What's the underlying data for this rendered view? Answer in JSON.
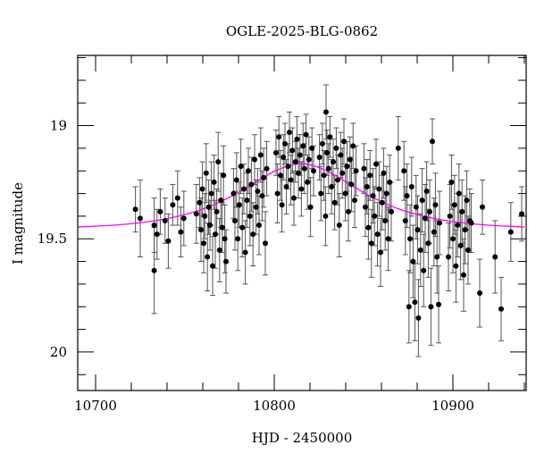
{
  "chart_data": {
    "type": "scatter",
    "title": "OGLE-2025-BLG-0862",
    "xlabel": "HJD - 2450000",
    "ylabel": "I magnitude",
    "xlim": [
      10690,
      10941
    ],
    "ylim": [
      20.17,
      18.69
    ],
    "y_inverted": true,
    "grid": false,
    "x_ticks": [
      10700,
      10800,
      10900
    ],
    "x_tick_labels": [
      "10700",
      "10800",
      "10900"
    ],
    "x_minor_step": 20,
    "y_ticks": [
      19,
      19.5,
      20
    ],
    "y_tick_labels": [
      "19",
      "19.5",
      "20"
    ],
    "y_minor_step": 0.1,
    "colors": {
      "points": "#000000",
      "errorbars": "#555555",
      "model": "#ff00ff"
    },
    "series": [
      {
        "type": "scatter-errorbar",
        "columns": [
          "hjd",
          "mag",
          "err"
        ],
        "points": [
          [
            10722.3,
            19.37,
            0.1
          ],
          [
            10725.0,
            19.41,
            0.17
          ],
          [
            10732.8,
            19.44,
            0.12
          ],
          [
            10732.8,
            19.64,
            0.19
          ],
          [
            10734.4,
            19.48,
            0.11
          ],
          [
            10736.2,
            19.38,
            0.1
          ],
          [
            10738.9,
            19.42,
            0.1
          ],
          [
            10740.7,
            19.51,
            0.12
          ],
          [
            10743.2,
            19.35,
            0.09
          ],
          [
            10745.9,
            19.32,
            0.12
          ],
          [
            10747.7,
            19.47,
            0.11
          ],
          [
            10749.4,
            19.41,
            0.12
          ],
          [
            10756.4,
            19.39,
            0.13
          ],
          [
            10758.2,
            19.34,
            0.11
          ],
          [
            10759.0,
            19.46,
            0.14
          ],
          [
            10759.8,
            19.28,
            0.12
          ],
          [
            10760.5,
            19.52,
            0.13
          ],
          [
            10761.1,
            19.4,
            0.1
          ],
          [
            10761.9,
            19.21,
            0.13
          ],
          [
            10762.6,
            19.58,
            0.15
          ],
          [
            10763.3,
            19.36,
            0.12
          ],
          [
            10764.0,
            19.44,
            0.11
          ],
          [
            10764.8,
            19.3,
            0.14
          ],
          [
            10765.5,
            19.62,
            0.13
          ],
          [
            10766.3,
            19.25,
            0.12
          ],
          [
            10767.0,
            19.48,
            0.15
          ],
          [
            10767.8,
            19.38,
            0.1
          ],
          [
            10768.6,
            19.16,
            0.13
          ],
          [
            10769.4,
            19.55,
            0.14
          ],
          [
            10770.1,
            19.33,
            0.12
          ],
          [
            10770.9,
            19.45,
            0.11
          ],
          [
            10771.6,
            19.22,
            0.13
          ],
          [
            10772.3,
            19.5,
            0.15
          ],
          [
            10773.0,
            19.6,
            0.14
          ],
          [
            10777.2,
            19.3,
            0.11
          ],
          [
            10778.0,
            19.42,
            0.13
          ],
          [
            10778.9,
            19.24,
            0.12
          ],
          [
            10779.6,
            19.5,
            0.14
          ],
          [
            10780.4,
            19.35,
            0.1
          ],
          [
            10781.3,
            19.18,
            0.12
          ],
          [
            10782.1,
            19.45,
            0.13
          ],
          [
            10783.0,
            19.28,
            0.11
          ],
          [
            10783.8,
            19.56,
            0.14
          ],
          [
            10784.7,
            19.33,
            0.12
          ],
          [
            10785.5,
            19.2,
            0.1
          ],
          [
            10786.4,
            19.4,
            0.13
          ],
          [
            10787.2,
            19.26,
            0.12
          ],
          [
            10788.1,
            19.48,
            0.14
          ],
          [
            10789.0,
            19.15,
            0.11
          ],
          [
            10789.8,
            19.36,
            0.12
          ],
          [
            10790.7,
            19.29,
            0.1
          ],
          [
            10791.5,
            19.44,
            0.13
          ],
          [
            10792.4,
            19.13,
            0.12
          ],
          [
            10793.2,
            19.31,
            0.11
          ],
          [
            10794.1,
            19.23,
            0.13
          ],
          [
            10795.0,
            19.52,
            0.14
          ],
          [
            10795.8,
            19.19,
            0.12
          ],
          [
            10801.0,
            19.12,
            0.1
          ],
          [
            10801.8,
            19.3,
            0.13
          ],
          [
            10802.6,
            19.05,
            0.09
          ],
          [
            10803.5,
            19.22,
            0.11
          ],
          [
            10804.3,
            19.35,
            0.12
          ],
          [
            10805.1,
            19.14,
            0.1
          ],
          [
            10806.0,
            19.08,
            0.09
          ],
          [
            10806.8,
            19.27,
            0.12
          ],
          [
            10807.7,
            19.18,
            0.1
          ],
          [
            10808.5,
            19.03,
            0.09
          ],
          [
            10809.3,
            19.24,
            0.11
          ],
          [
            10810.2,
            19.11,
            0.1
          ],
          [
            10811.0,
            19.32,
            0.12
          ],
          [
            10811.9,
            19.16,
            0.09
          ],
          [
            10812.7,
            19.06,
            0.1
          ],
          [
            10813.5,
            19.21,
            0.11
          ],
          [
            10814.4,
            19.13,
            0.09
          ],
          [
            10815.2,
            19.28,
            0.12
          ],
          [
            10816.1,
            19.09,
            0.1
          ],
          [
            10816.9,
            19.19,
            0.11
          ],
          [
            10817.8,
            19.04,
            0.09
          ],
          [
            10818.6,
            19.25,
            0.12
          ],
          [
            10819.4,
            19.15,
            0.1
          ],
          [
            10820.3,
            19.36,
            0.13
          ],
          [
            10821.1,
            19.1,
            0.09
          ],
          [
            10822.0,
            19.2,
            0.11
          ],
          [
            10825.3,
            19.14,
            0.1
          ],
          [
            10826.1,
            19.3,
            0.12
          ],
          [
            10827.0,
            19.08,
            0.09
          ],
          [
            10827.8,
            19.22,
            0.11
          ],
          [
            10828.7,
            19.4,
            0.13
          ],
          [
            10829.0,
            18.94,
            0.12
          ],
          [
            10829.5,
            19.12,
            0.1
          ],
          [
            10830.4,
            19.19,
            0.11
          ],
          [
            10831.2,
            19.05,
            0.09
          ],
          [
            10832.1,
            19.27,
            0.12
          ],
          [
            10833.0,
            19.16,
            0.1
          ],
          [
            10833.8,
            19.34,
            0.12
          ],
          [
            10834.7,
            19.1,
            0.09
          ],
          [
            10835.5,
            19.24,
            0.11
          ],
          [
            10836.4,
            19.44,
            0.14
          ],
          [
            10837.2,
            19.13,
            0.1
          ],
          [
            10838.1,
            19.21,
            0.11
          ],
          [
            10839.0,
            19.07,
            0.1
          ],
          [
            10839.8,
            19.3,
            0.12
          ],
          [
            10840.7,
            19.18,
            0.11
          ],
          [
            10841.5,
            19.38,
            0.13
          ],
          [
            10842.4,
            19.15,
            0.1
          ],
          [
            10843.2,
            19.26,
            0.12
          ],
          [
            10844.1,
            19.09,
            0.1
          ],
          [
            10845.0,
            19.33,
            0.12
          ],
          [
            10845.8,
            19.2,
            0.11
          ],
          [
            10850.2,
            19.19,
            0.11
          ],
          [
            10851.0,
            19.36,
            0.13
          ],
          [
            10851.9,
            19.27,
            0.12
          ],
          [
            10852.7,
            19.45,
            0.14
          ],
          [
            10853.6,
            19.22,
            0.11
          ],
          [
            10854.4,
            19.52,
            0.15
          ],
          [
            10855.3,
            19.31,
            0.12
          ],
          [
            10856.1,
            19.4,
            0.13
          ],
          [
            10857.0,
            19.17,
            0.11
          ],
          [
            10857.8,
            19.48,
            0.14
          ],
          [
            10858.7,
            19.28,
            0.12
          ],
          [
            10859.5,
            19.56,
            0.15
          ],
          [
            10860.4,
            19.34,
            0.12
          ],
          [
            10861.2,
            19.21,
            0.11
          ],
          [
            10862.1,
            19.42,
            0.13
          ],
          [
            10862.9,
            19.3,
            0.12
          ],
          [
            10863.8,
            19.5,
            0.14
          ],
          [
            10864.6,
            19.25,
            0.12
          ],
          [
            10865.5,
            19.38,
            0.13
          ],
          [
            10869.4,
            19.1,
            0.14
          ],
          [
            10872.6,
            19.2,
            0.13
          ],
          [
            10873.4,
            19.42,
            0.15
          ],
          [
            10874.3,
            19.31,
            0.14
          ],
          [
            10875.4,
            19.8,
            0.16
          ],
          [
            10876.0,
            19.5,
            0.15
          ],
          [
            10876.9,
            19.27,
            0.13
          ],
          [
            10877.7,
            19.6,
            0.16
          ],
          [
            10878.7,
            19.78,
            0.17
          ],
          [
            10879.4,
            19.36,
            0.14
          ],
          [
            10880.2,
            19.46,
            0.15
          ],
          [
            10880.7,
            19.85,
            0.17
          ],
          [
            10881.9,
            19.55,
            0.16
          ],
          [
            10882.8,
            19.33,
            0.14
          ],
          [
            10883.6,
            19.64,
            0.16
          ],
          [
            10884.5,
            19.41,
            0.15
          ],
          [
            10885.3,
            19.29,
            0.13
          ],
          [
            10886.2,
            19.52,
            0.15
          ],
          [
            10887.0,
            19.38,
            0.14
          ],
          [
            10887.7,
            19.8,
            0.17
          ],
          [
            10888.5,
            19.07,
            0.1
          ],
          [
            10889.4,
            19.47,
            0.15
          ],
          [
            10890.2,
            19.35,
            0.14
          ],
          [
            10891.1,
            19.58,
            0.16
          ],
          [
            10892.0,
            19.79,
            0.17
          ],
          [
            10892.5,
            19.43,
            0.14
          ],
          [
            10897.5,
            19.58,
            0.15
          ],
          [
            10898.3,
            19.4,
            0.14
          ],
          [
            10899.2,
            19.25,
            0.12
          ],
          [
            10900.0,
            19.5,
            0.15
          ],
          [
            10900.9,
            19.35,
            0.13
          ],
          [
            10901.7,
            19.62,
            0.16
          ],
          [
            10902.6,
            19.44,
            0.14
          ],
          [
            10903.4,
            19.3,
            0.13
          ],
          [
            10904.3,
            19.53,
            0.15
          ],
          [
            10905.1,
            19.38,
            0.14
          ],
          [
            10906.0,
            19.66,
            0.16
          ],
          [
            10906.8,
            19.46,
            0.15
          ],
          [
            10907.7,
            19.33,
            0.13
          ],
          [
            10908.5,
            19.55,
            0.15
          ],
          [
            10909.4,
            19.42,
            0.14
          ],
          [
            10910.3,
            19.43,
            0.13
          ],
          [
            10915.0,
            19.74,
            0.15
          ],
          [
            10916.5,
            19.36,
            0.12
          ],
          [
            10923.6,
            19.58,
            0.16
          ],
          [
            10927.0,
            19.81,
            0.14
          ],
          [
            10932.4,
            19.47,
            0.13
          ],
          [
            10938.5,
            19.39,
            0.12
          ]
        ]
      },
      {
        "type": "line",
        "columns": [
          "hjd",
          "mag"
        ],
        "points": [
          [
            10690,
            19.448
          ],
          [
            10700,
            19.444
          ],
          [
            10710,
            19.44
          ],
          [
            10720,
            19.433
          ],
          [
            10730,
            19.424
          ],
          [
            10740,
            19.411
          ],
          [
            10750,
            19.393
          ],
          [
            10760,
            19.369
          ],
          [
            10770,
            19.336
          ],
          [
            10780,
            19.295
          ],
          [
            10790,
            19.248
          ],
          [
            10800,
            19.202
          ],
          [
            10810,
            19.173
          ],
          [
            10815,
            19.169
          ],
          [
            10820,
            19.173
          ],
          [
            10830,
            19.202
          ],
          [
            10840,
            19.248
          ],
          [
            10850,
            19.295
          ],
          [
            10860,
            19.336
          ],
          [
            10870,
            19.369
          ],
          [
            10880,
            19.393
          ],
          [
            10890,
            19.411
          ],
          [
            10900,
            19.424
          ],
          [
            10910,
            19.433
          ],
          [
            10920,
            19.44
          ],
          [
            10930,
            19.444
          ],
          [
            10940,
            19.448
          ]
        ]
      }
    ]
  }
}
